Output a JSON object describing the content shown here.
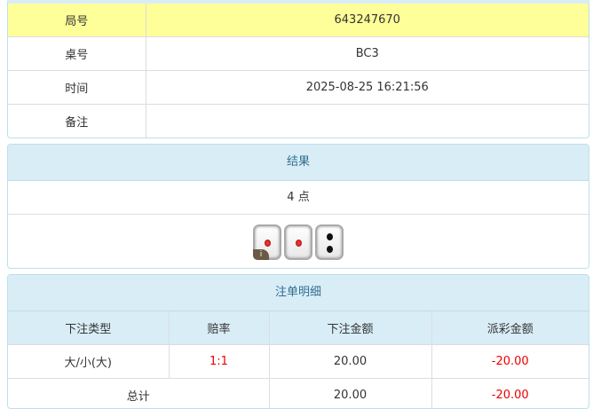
{
  "info": {
    "rows": [
      {
        "label": "局号",
        "value": "643247670"
      },
      {
        "label": "桌号",
        "value": "BC3"
      },
      {
        "label": "时间",
        "value": "2025-08-25 16:21:56"
      },
      {
        "label": "备注",
        "value": ""
      }
    ]
  },
  "result": {
    "title": "结果",
    "points": "4 点",
    "dice": [
      1,
      1,
      2
    ],
    "info_icon": "i"
  },
  "detail": {
    "title": "注单明细",
    "headers": [
      "下注类型",
      "赔率",
      "下注金额",
      "派彩金额"
    ],
    "rows": [
      {
        "type": "大/小(大)",
        "odds": "1:1",
        "bet": "20.00",
        "payout": "-20.00"
      }
    ],
    "total": {
      "label": "总计",
      "bet": "20.00",
      "payout": "-20.00"
    }
  },
  "colors": {
    "highlight": "#ffff99",
    "header": "#d9edf7",
    "negative": "#ee0000"
  }
}
